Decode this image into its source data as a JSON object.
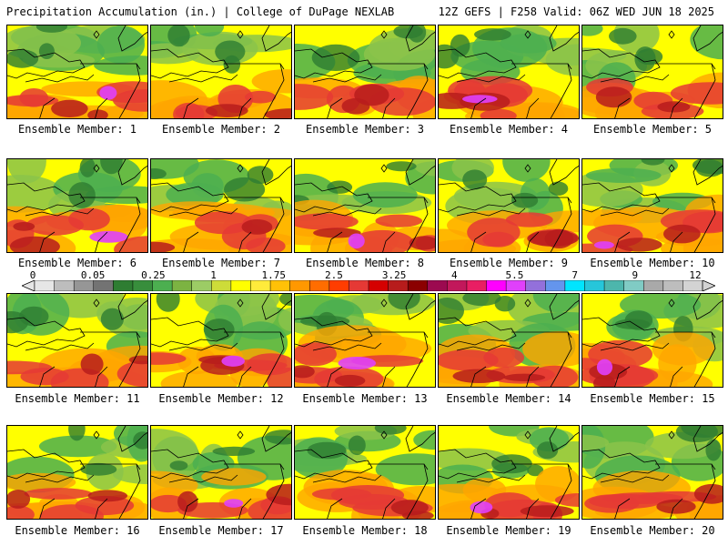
{
  "header": {
    "left": "Precipitation Accumulation (in.) | College of DuPage NEXLAB",
    "right": "12Z GEFS | F258 Valid: 06Z WED JUN 18 2025"
  },
  "members": [
    {
      "label": "Ensemble Member: 1"
    },
    {
      "label": "Ensemble Member: 2"
    },
    {
      "label": "Ensemble Member: 3"
    },
    {
      "label": "Ensemble Member: 4"
    },
    {
      "label": "Ensemble Member: 5"
    },
    {
      "label": "Ensemble Member: 6"
    },
    {
      "label": "Ensemble Member: 7"
    },
    {
      "label": "Ensemble Member: 8"
    },
    {
      "label": "Ensemble Member: 9"
    },
    {
      "label": "Ensemble Member: 10"
    },
    {
      "label": "Ensemble Member: 11"
    },
    {
      "label": "Ensemble Member: 12"
    },
    {
      "label": "Ensemble Member: 13"
    },
    {
      "label": "Ensemble Member: 14"
    },
    {
      "label": "Ensemble Member: 15"
    },
    {
      "label": "Ensemble Member: 16"
    },
    {
      "label": "Ensemble Member: 17"
    },
    {
      "label": "Ensemble Member: 18"
    },
    {
      "label": "Ensemble Member: 19"
    },
    {
      "label": "Ensemble Member: 20"
    }
  ],
  "colorbar": {
    "ticks": [
      "0",
      "0.05",
      "0.25",
      "1",
      "1.75",
      "2.5",
      "3.25",
      "4",
      "5.5",
      "7",
      "9",
      "12"
    ],
    "colors": [
      "#e6e6e6",
      "#bdbdbd",
      "#969696",
      "#737373",
      "#2e7d32",
      "#388e3c",
      "#4caf50",
      "#7cb342",
      "#9ccc65",
      "#cddc39",
      "#ffff00",
      "#ffeb3b",
      "#ffc107",
      "#ff9800",
      "#ff6d00",
      "#ff3d00",
      "#e53935",
      "#d50000",
      "#b71c1c",
      "#8b0000",
      "#9c0a50",
      "#c2185b",
      "#e91e63",
      "#ff00ff",
      "#e040fb",
      "#9370db",
      "#6495ed",
      "#00e5ff",
      "#26c6da",
      "#4db6ac",
      "#80cbc4",
      "#a9a9a9",
      "#bdbdbd",
      "#d3d3d3"
    ]
  },
  "field_colors": {
    "green_dark": "#2e7d32",
    "green": "#4caf50",
    "green_light": "#8bc34a",
    "yellow": "#ffff00",
    "orange": "#ffa500",
    "red": "#e53935",
    "dark_red": "#b71c1c",
    "magenta": "#e040fb",
    "cyan": "#40e0d0"
  }
}
